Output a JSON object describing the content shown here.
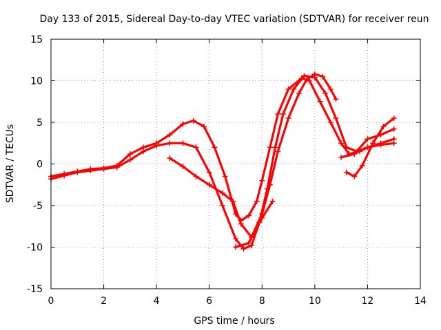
{
  "chart_data": {
    "type": "line",
    "title": "Day 133 of 2015, Sidereal Day-to-day VTEC variation (SDTVAR) for receiver reun",
    "xlabel": "GPS time / hours",
    "ylabel": "SDTVAR / TECUs",
    "xlim": [
      0,
      14
    ],
    "ylim": [
      -15,
      15
    ],
    "xticks": [
      0,
      2,
      4,
      6,
      8,
      10,
      12,
      14
    ],
    "yticks": [
      -15,
      -10,
      -5,
      0,
      5,
      10,
      15
    ],
    "grid": true,
    "legend": "none",
    "marker": "plus",
    "color": "#ff0000",
    "series": [
      {
        "name": "trace-1",
        "x": [
          0,
          0.5,
          1,
          1.5,
          2,
          2.5,
          3,
          3.5,
          4,
          4.5,
          5,
          5.4,
          5.8,
          6.2,
          6.6,
          7.0,
          7.2,
          7.5,
          7.8,
          8.0,
          8.3,
          8.6,
          9.0,
          9.5,
          9.8,
          10.2,
          10.6,
          11.0,
          11.3,
          11.7,
          12.0,
          12.5,
          13.0
        ],
        "y": [
          -1.5,
          -1.2,
          -0.9,
          -0.6,
          -0.5,
          -0.2,
          1.2,
          2.0,
          2.5,
          3.5,
          4.8,
          5.2,
          4.5,
          2.0,
          -1.5,
          -6.0,
          -6.8,
          -6.2,
          -4.5,
          -2.0,
          2.0,
          6.0,
          9.0,
          10.3,
          10.0,
          7.5,
          5.0,
          2.5,
          1.2,
          1.5,
          2.0,
          2.5,
          3.0
        ]
      },
      {
        "name": "trace-2",
        "x": [
          0,
          0.5,
          1,
          1.5,
          2,
          2.5,
          3,
          3.5,
          4,
          4.5,
          5,
          5.5,
          6.0,
          6.5,
          7.0,
          7.3,
          7.6,
          7.9,
          8.2,
          8.5,
          8.8,
          9.2,
          9.6,
          10.0,
          10.4,
          10.8,
          11.2,
          11.6,
          12.0,
          12.5,
          13.0
        ],
        "y": [
          -1.8,
          -1.4,
          -1.0,
          -0.8,
          -0.6,
          -0.4,
          0.5,
          1.5,
          2.2,
          2.5,
          2.5,
          2.0,
          -1.0,
          -5.0,
          -9.0,
          -10.2,
          -9.8,
          -7.0,
          -3.0,
          2.0,
          6.0,
          9.0,
          10.6,
          10.4,
          8.5,
          5.5,
          2.0,
          1.5,
          2.0,
          2.3,
          2.5
        ]
      },
      {
        "name": "trace-3",
        "x": [
          4.5,
          5.0,
          5.5,
          6.0,
          6.5,
          6.9,
          7.2,
          7.6,
          8.0,
          8.4
        ],
        "y": [
          0.7,
          -0.3,
          -1.5,
          -2.5,
          -3.5,
          -4.5,
          -7.2,
          -8.8,
          -6.5,
          -4.5
        ]
      },
      {
        "name": "trace-4",
        "x": [
          7.0,
          7.5,
          8.0,
          8.3,
          8.6,
          9.0,
          9.4,
          9.7,
          10.0,
          10.3,
          10.6,
          10.8
        ],
        "y": [
          -10.0,
          -9.5,
          -6.0,
          -2.5,
          1.5,
          5.5,
          8.5,
          10.2,
          10.8,
          10.5,
          9.0,
          7.8
        ]
      },
      {
        "name": "trace-5",
        "x": [
          11.2,
          11.5,
          11.8,
          12.2,
          12.6,
          13.0
        ],
        "y": [
          -1.0,
          -1.5,
          -0.2,
          2.5,
          4.5,
          5.5
        ]
      },
      {
        "name": "trace-6",
        "x": [
          11.0,
          11.5,
          12.0,
          12.5,
          13.0
        ],
        "y": [
          0.8,
          1.2,
          3.0,
          3.5,
          4.2
        ]
      }
    ]
  }
}
